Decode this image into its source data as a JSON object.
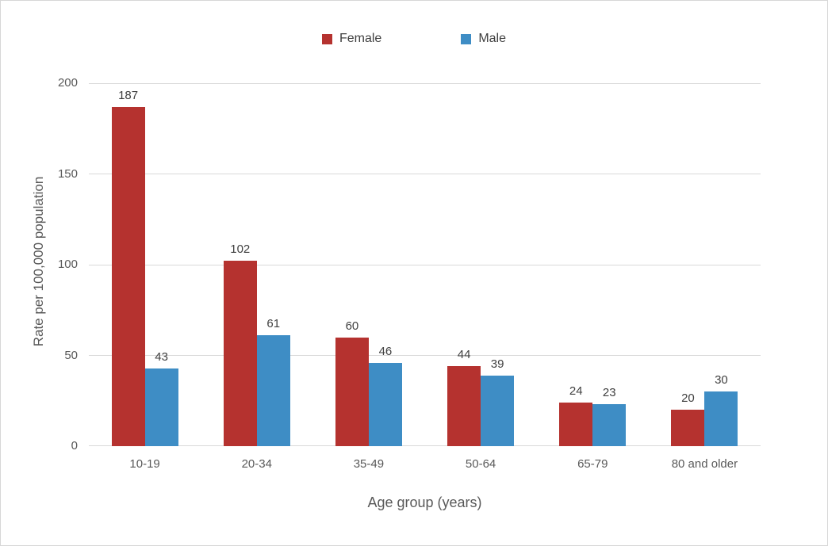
{
  "chart_data": {
    "type": "bar",
    "title": "",
    "categories": [
      "10-19",
      "20-34",
      "35-49",
      "50-64",
      "65-79",
      "80 and older"
    ],
    "series": [
      {
        "name": "Female",
        "color": "#B5322F",
        "values": [
          187,
          102,
          60,
          44,
          24,
          20
        ]
      },
      {
        "name": "Male",
        "color": "#3E8DC5",
        "values": [
          43,
          61,
          46,
          39,
          23,
          30
        ]
      }
    ],
    "xlabel": "Age group (years)",
    "ylabel": "Rate per 100,000 population",
    "ylim": [
      0,
      200
    ],
    "yticks": [
      0,
      50,
      100,
      150,
      200
    ],
    "grid": true,
    "legend_position": "top-center",
    "bar_value_labels": true
  },
  "colors": {
    "gridline": "#D9D9D9",
    "axis_text": "#595959",
    "value_label_text": "#404040",
    "background": "#FFFFFF",
    "border": "#D7D7D7"
  }
}
